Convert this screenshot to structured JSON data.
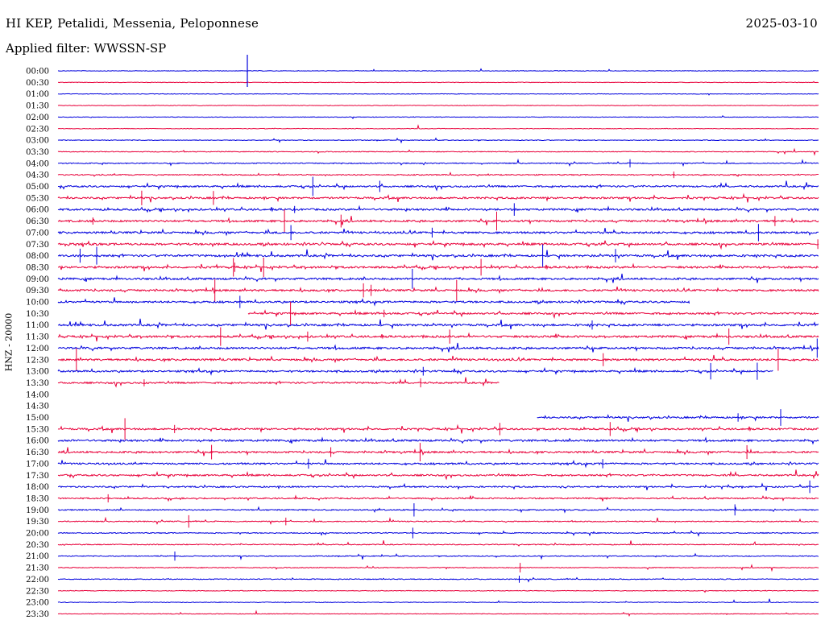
{
  "header": {
    "station": "HI KEP, Petalidi, Messenia, Peloponnese",
    "date": "2025-03-10",
    "filter_label": "Applied filter:",
    "filter_value": "WWSSN-SP",
    "side_label": "HNZ - 20000"
  },
  "colors": {
    "trace_even": "#0000dd",
    "trace_odd": "#e8003a",
    "background": "#ffffff",
    "text": "#000000"
  },
  "chart_data": {
    "type": "line",
    "title": "HI KEP, Petalidi, Messenia, Peloponnese",
    "ylabel": "HNZ - 20000",
    "xlabel": "",
    "grid": false,
    "legend": "none",
    "row_labels": [
      "00:00",
      "00:30",
      "01:00",
      "01:30",
      "02:00",
      "02:30",
      "03:00",
      "03:30",
      "04:00",
      "04:30",
      "05:00",
      "05:30",
      "06:00",
      "06:30",
      "07:00",
      "07:30",
      "08:00",
      "08:30",
      "09:00",
      "09:30",
      "10:00",
      "10:30",
      "11:00",
      "11:30",
      "12:00",
      "12:30",
      "13:00",
      "13:30",
      "14:00",
      "14:30",
      "15:00",
      "15:30",
      "16:00",
      "16:30",
      "17:00",
      "17:30",
      "18:00",
      "18:30",
      "19:00",
      "19:30",
      "20:00",
      "20:30",
      "21:00",
      "21:30",
      "22:00",
      "22:30",
      "23:00",
      "23:30"
    ],
    "row_minutes": 30,
    "series": [
      {
        "activity": 0.05,
        "data_start": 0.0,
        "data_end": 1.0
      },
      {
        "activity": 0.04,
        "data_start": 0.0,
        "data_end": 1.0
      },
      {
        "activity": 0.04,
        "data_start": 0.0,
        "data_end": 1.0
      },
      {
        "activity": 0.04,
        "data_start": 0.0,
        "data_end": 1.0
      },
      {
        "activity": 0.05,
        "data_start": 0.0,
        "data_end": 1.0
      },
      {
        "activity": 0.04,
        "data_start": 0.0,
        "data_end": 1.0
      },
      {
        "activity": 0.12,
        "data_start": 0.0,
        "data_end": 1.0
      },
      {
        "activity": 0.18,
        "data_start": 0.0,
        "data_end": 1.0
      },
      {
        "activity": 0.35,
        "data_start": 0.0,
        "data_end": 1.0
      },
      {
        "activity": 0.4,
        "data_start": 0.0,
        "data_end": 1.0
      },
      {
        "activity": 0.75,
        "data_start": 0.0,
        "data_end": 1.0
      },
      {
        "activity": 0.85,
        "data_start": 0.0,
        "data_end": 1.0
      },
      {
        "activity": 0.9,
        "data_start": 0.0,
        "data_end": 1.0
      },
      {
        "activity": 0.95,
        "data_start": 0.0,
        "data_end": 1.0
      },
      {
        "activity": 0.95,
        "data_start": 0.0,
        "data_end": 1.0
      },
      {
        "activity": 1.0,
        "data_start": 0.0,
        "data_end": 1.0
      },
      {
        "activity": 1.0,
        "data_start": 0.0,
        "data_end": 1.0
      },
      {
        "activity": 1.0,
        "data_start": 0.0,
        "data_end": 1.0
      },
      {
        "activity": 0.95,
        "data_start": 0.0,
        "data_end": 1.0
      },
      {
        "activity": 0.9,
        "data_start": 0.0,
        "data_end": 1.0
      },
      {
        "activity": 0.85,
        "data_start": 0.0,
        "data_end": 0.83
      },
      {
        "activity": 0.9,
        "data_start": 0.25,
        "data_end": 1.0
      },
      {
        "activity": 1.0,
        "data_start": 0.0,
        "data_end": 1.0
      },
      {
        "activity": 1.0,
        "data_start": 0.0,
        "data_end": 1.0
      },
      {
        "activity": 0.95,
        "data_start": 0.0,
        "data_end": 1.0
      },
      {
        "activity": 0.95,
        "data_start": 0.0,
        "data_end": 1.0
      },
      {
        "activity": 0.8,
        "data_start": 0.0,
        "data_end": 0.94
      },
      {
        "activity": 0.75,
        "data_start": 0.0,
        "data_end": 0.58
      },
      {
        "activity": 0.0,
        "data_start": 0.0,
        "data_end": 0.0
      },
      {
        "activity": 0.0,
        "data_start": 0.0,
        "data_end": 0.0
      },
      {
        "activity": 0.8,
        "data_start": 0.63,
        "data_end": 1.0
      },
      {
        "activity": 0.85,
        "data_start": 0.0,
        "data_end": 1.0
      },
      {
        "activity": 0.9,
        "data_start": 0.0,
        "data_end": 1.0
      },
      {
        "activity": 0.85,
        "data_start": 0.0,
        "data_end": 1.0
      },
      {
        "activity": 0.75,
        "data_start": 0.0,
        "data_end": 1.0
      },
      {
        "activity": 0.75,
        "data_start": 0.0,
        "data_end": 1.0
      },
      {
        "activity": 0.6,
        "data_start": 0.0,
        "data_end": 1.0
      },
      {
        "activity": 0.55,
        "data_start": 0.0,
        "data_end": 1.0
      },
      {
        "activity": 0.45,
        "data_start": 0.0,
        "data_end": 1.0
      },
      {
        "activity": 0.35,
        "data_start": 0.0,
        "data_end": 1.0
      },
      {
        "activity": 0.3,
        "data_start": 0.0,
        "data_end": 1.0
      },
      {
        "activity": 0.3,
        "data_start": 0.0,
        "data_end": 1.0
      },
      {
        "activity": 0.25,
        "data_start": 0.0,
        "data_end": 1.0
      },
      {
        "activity": 0.2,
        "data_start": 0.0,
        "data_end": 1.0
      },
      {
        "activity": 0.25,
        "data_start": 0.0,
        "data_end": 1.0
      },
      {
        "activity": 0.12,
        "data_start": 0.0,
        "data_end": 1.0
      },
      {
        "activity": 0.1,
        "data_start": 0.0,
        "data_end": 1.0
      },
      {
        "activity": 0.08,
        "data_start": 0.0,
        "data_end": 1.0
      }
    ]
  }
}
